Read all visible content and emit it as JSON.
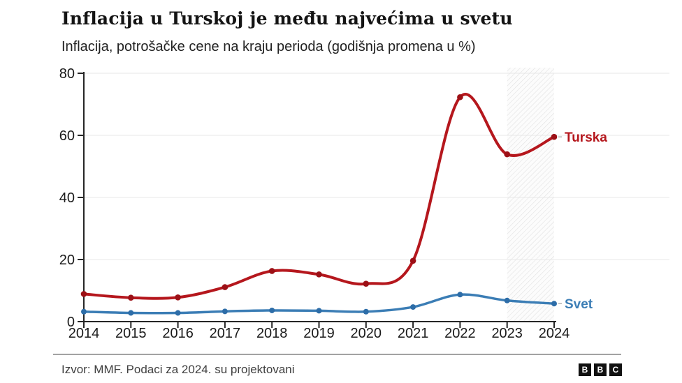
{
  "header": {
    "title": "Inflacija u Turskoj je među najvećima u svetu",
    "subtitle": "Inflacija, potrošačke cene na kraju perioda (godišnja promena u %)"
  },
  "chart_data": {
    "type": "line",
    "x": [
      "2014",
      "2015",
      "2016",
      "2017",
      "2018",
      "2019",
      "2020",
      "2021",
      "2022",
      "2023",
      "2024"
    ],
    "series": [
      {
        "name": "Turska",
        "color": "#b5171d",
        "marker_color": "#9c1016",
        "values": [
          8.9,
          7.7,
          7.8,
          11.1,
          16.3,
          15.2,
          12.2,
          19.6,
          72.3,
          53.9,
          59.5
        ]
      },
      {
        "name": "Svet",
        "color": "#3b7db5",
        "marker_color": "#2d6da8",
        "values": [
          3.2,
          2.8,
          2.8,
          3.3,
          3.6,
          3.5,
          3.2,
          4.7,
          8.7,
          6.8,
          5.8
        ]
      }
    ],
    "ylim": [
      0,
      80
    ],
    "yticks": [
      0,
      20,
      40,
      60,
      80
    ],
    "grid": "horizontal",
    "legend_position": "end-of-line",
    "projection_band": {
      "from": "2023",
      "to": "2024"
    }
  },
  "colors": {
    "axis": "#262626",
    "gridline": "#e7e7e7",
    "tick_label": "#1a1a1a",
    "hatch": "#e2e2e2",
    "leader_dash": "#b3b3b3"
  },
  "footer": {
    "source": "Izvor: MMF. Podaci za 2024. su projektovani",
    "logo": [
      "B",
      "B",
      "C"
    ]
  }
}
